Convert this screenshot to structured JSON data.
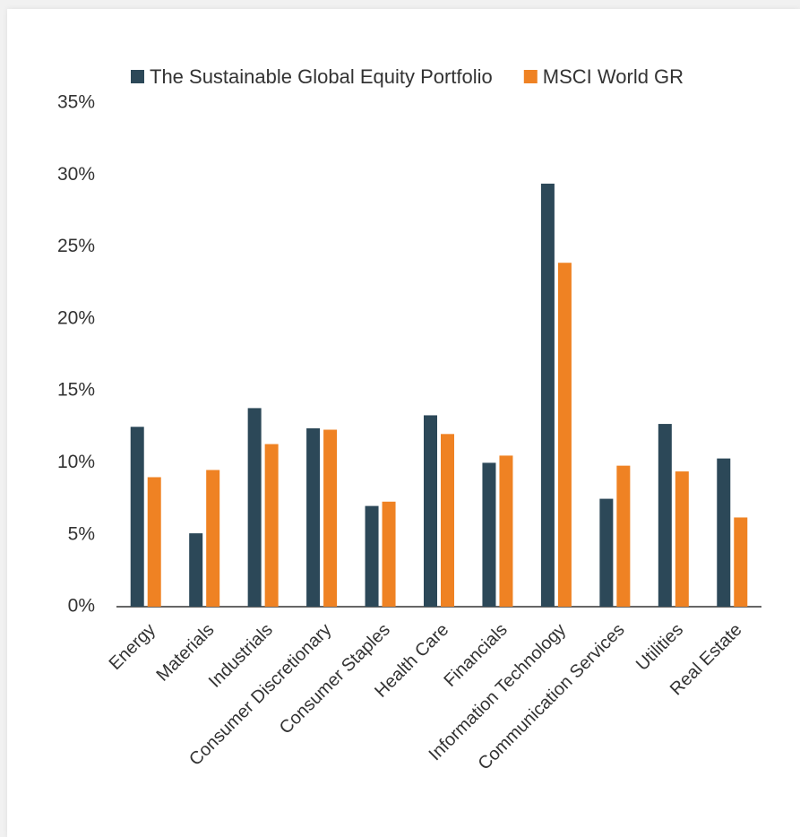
{
  "chart_data": {
    "type": "bar",
    "categories": [
      "Energy",
      "Materials",
      "Industrials",
      "Consumer Discretionary",
      "Consumer Staples",
      "Health Care",
      "Financials",
      "Information Technology",
      "Communication Services",
      "Utilities",
      "Real Estate"
    ],
    "series": [
      {
        "name": "The Sustainable Global Equity Portfolio",
        "color": "#2c4858",
        "values": [
          12.5,
          5.1,
          13.8,
          12.4,
          7.0,
          13.3,
          10.0,
          29.4,
          7.5,
          12.7,
          10.3
        ]
      },
      {
        "name": "MSCI World GR",
        "color": "#ef8223",
        "values": [
          9.0,
          9.5,
          11.3,
          12.3,
          7.3,
          12.0,
          10.5,
          23.9,
          9.8,
          9.4,
          6.2
        ]
      }
    ],
    "ylim": [
      0,
      35
    ],
    "yticks": [
      {
        "value": 0,
        "label": "0%"
      },
      {
        "value": 5,
        "label": "5%"
      },
      {
        "value": 10,
        "label": "10%"
      },
      {
        "value": 15,
        "label": "15%"
      },
      {
        "value": 20,
        "label": "20%"
      },
      {
        "value": 25,
        "label": "25%"
      },
      {
        "value": 30,
        "label": "30%"
      },
      {
        "value": 35,
        "label": "35%"
      }
    ],
    "grid": false,
    "legend": "top"
  }
}
